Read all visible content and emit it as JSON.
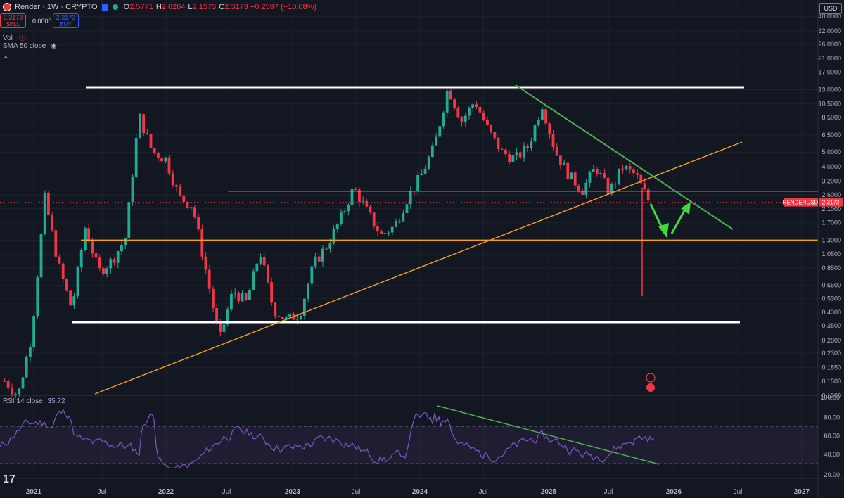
{
  "header": {
    "symbol": "Render",
    "interval": "1W",
    "exchange": "CRYPTO",
    "open_label": "O",
    "open": "2.5771",
    "high_label": "H",
    "high": "2.6264",
    "low_label": "L",
    "low": "2.1573",
    "close_label": "C",
    "close": "2.3173",
    "change": "−0.2597 (−10.08%)"
  },
  "trade": {
    "sell_price": "2.3173",
    "sell_label": "SELL",
    "spread": "0.0000",
    "buy_price": "2.3173",
    "buy_label": "BUY"
  },
  "indicators": {
    "vol": "Vol",
    "sma": "SMA 50 close",
    "rsi_label": "RSI 14 close",
    "rsi_value": "35.72"
  },
  "currency": "USD",
  "price_tag": {
    "label": "RENDERUSD",
    "value": "2.3173"
  },
  "colors": {
    "bg": "#131722",
    "up": "#22ab94",
    "down": "#f23645",
    "orange": "#f7a21b",
    "green_line": "#4caf50",
    "rsi": "#7e57c2"
  },
  "chart_data": {
    "type": "candlestick",
    "interval": "1W",
    "y_scale": "log",
    "y_ticks": [
      "40.0000",
      "32.0000",
      "26.0000",
      "21.0000",
      "17.0000",
      "13.0000",
      "10.5000",
      "8.5000",
      "6.5000",
      "5.0000",
      "4.0000",
      "3.2000",
      "2.6000",
      "2.1000",
      "1.7000",
      "1.3000",
      "1.0500",
      "0.8500",
      "0.6500",
      "0.5300",
      "0.4300",
      "0.3500",
      "0.2800",
      "0.2300",
      "0.1850",
      "0.1500",
      "0.1200"
    ],
    "x_ticks": [
      "2021",
      "Jul",
      "2022",
      "Jul",
      "2023",
      "Jul",
      "2024",
      "Jul",
      "2025",
      "Jul",
      "2026",
      "Jul",
      "2027"
    ],
    "x_range": [
      "2020-10",
      "2027-03"
    ],
    "price_path": [
      [
        0,
        0.15
      ],
      [
        2,
        0.12
      ],
      [
        3,
        0.3
      ],
      [
        4,
        2.5
      ],
      [
        5,
        0.9
      ],
      [
        6,
        0.45
      ],
      [
        7,
        1.6
      ],
      [
        8,
        0.8
      ],
      [
        9,
        0.95
      ],
      [
        10,
        1.35
      ],
      [
        11,
        8.8
      ],
      [
        12,
        5.0
      ],
      [
        13,
        4.5
      ],
      [
        14,
        2.5
      ],
      [
        15,
        2.2
      ],
      [
        16,
        0.8
      ],
      [
        17,
        0.28
      ],
      [
        18,
        0.6
      ],
      [
        19,
        0.5
      ],
      [
        20,
        1.1
      ],
      [
        21,
        0.45
      ],
      [
        22,
        0.38
      ],
      [
        23,
        0.43
      ],
      [
        24,
        0.9
      ],
      [
        25,
        1.2
      ],
      [
        26,
        1.8
      ],
      [
        27,
        2.9
      ],
      [
        28,
        2.0
      ],
      [
        29,
        1.4
      ],
      [
        30,
        1.6
      ],
      [
        31,
        2.5
      ],
      [
        32,
        3.5
      ],
      [
        33,
        5.5
      ],
      [
        34,
        13.5
      ],
      [
        35,
        8.0
      ],
      [
        36,
        11.0
      ],
      [
        37,
        7.0
      ],
      [
        38,
        5.0
      ],
      [
        39,
        4.5
      ],
      [
        40,
        5.5
      ],
      [
        41,
        10.5
      ],
      [
        42,
        5.0
      ],
      [
        43,
        3.5
      ],
      [
        44,
        2.8
      ],
      [
        45,
        4.0
      ],
      [
        46,
        2.7
      ],
      [
        47,
        4.0
      ],
      [
        48,
        3.5
      ],
      [
        49,
        2.3
      ]
    ],
    "horizontal_levels": [
      {
        "price": 13.5,
        "color": "white"
      },
      {
        "price": 2.75,
        "color": "orange"
      },
      {
        "price": 1.3,
        "color": "orange"
      },
      {
        "price": 0.37,
        "color": "white"
      }
    ],
    "current_price": 2.3173,
    "rsi": {
      "period": 14,
      "value": 35.72,
      "y_ticks": [
        "100.00",
        "80.00",
        "60.00",
        "40.00",
        "20.00"
      ],
      "levels": [
        70,
        50,
        30
      ]
    }
  }
}
